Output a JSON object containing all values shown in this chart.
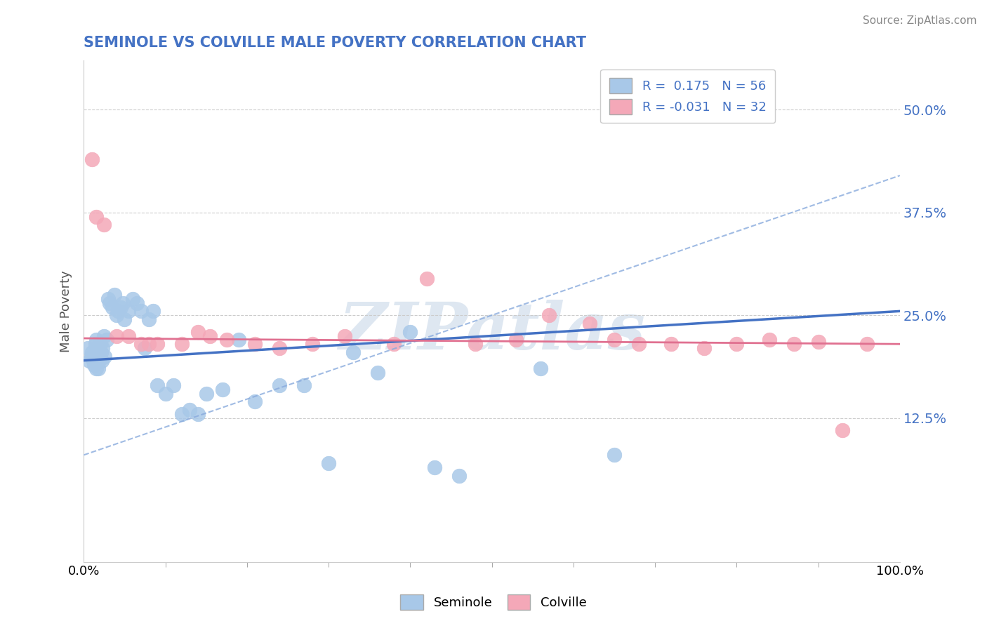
{
  "title": "SEMINOLE VS COLVILLE MALE POVERTY CORRELATION CHART",
  "source": "Source: ZipAtlas.com",
  "ylabel": "Male Poverty",
  "xlim": [
    0.0,
    1.0
  ],
  "ylim": [
    -0.05,
    0.56
  ],
  "xtick_positions": [
    0.0,
    1.0
  ],
  "xtick_labels": [
    "0.0%",
    "100.0%"
  ],
  "ytick_values": [
    0.125,
    0.25,
    0.375,
    0.5
  ],
  "ytick_labels": [
    "12.5%",
    "25.0%",
    "37.5%",
    "50.0%"
  ],
  "seminole_color": "#a8c8e8",
  "colville_color": "#f4a8b8",
  "seminole_line_color": "#4472c4",
  "colville_line_color": "#e07090",
  "dashed_line_color": "#88aadd",
  "legend_R1": "R =  0.175   N = 56",
  "legend_R2": "R = -0.031   N = 32",
  "watermark_text": "ZIPatlas",
  "watermark_color": "#c8d8e8",
  "background_color": "#ffffff",
  "grid_color": "#cccccc",
  "title_color": "#4472c4",
  "right_tick_color": "#4472c4",
  "source_color": "#888888",
  "ylabel_color": "#555555",
  "seminole_x": [
    0.005,
    0.007,
    0.009,
    0.01,
    0.012,
    0.013,
    0.014,
    0.015,
    0.015,
    0.016,
    0.017,
    0.018,
    0.019,
    0.02,
    0.021,
    0.022,
    0.023,
    0.025,
    0.026,
    0.028,
    0.03,
    0.032,
    0.035,
    0.038,
    0.04,
    0.042,
    0.045,
    0.048,
    0.05,
    0.055,
    0.06,
    0.065,
    0.07,
    0.075,
    0.08,
    0.085,
    0.09,
    0.1,
    0.11,
    0.12,
    0.13,
    0.14,
    0.15,
    0.17,
    0.19,
    0.21,
    0.24,
    0.27,
    0.3,
    0.33,
    0.36,
    0.4,
    0.43,
    0.46,
    0.56,
    0.65
  ],
  "seminole_y": [
    0.21,
    0.195,
    0.2,
    0.205,
    0.195,
    0.19,
    0.215,
    0.185,
    0.22,
    0.2,
    0.21,
    0.185,
    0.195,
    0.215,
    0.205,
    0.195,
    0.21,
    0.225,
    0.2,
    0.22,
    0.27,
    0.265,
    0.26,
    0.275,
    0.25,
    0.255,
    0.26,
    0.265,
    0.245,
    0.255,
    0.27,
    0.265,
    0.255,
    0.21,
    0.245,
    0.255,
    0.165,
    0.155,
    0.165,
    0.13,
    0.135,
    0.13,
    0.155,
    0.16,
    0.22,
    0.145,
    0.165,
    0.165,
    0.07,
    0.205,
    0.18,
    0.23,
    0.065,
    0.055,
    0.185,
    0.08
  ],
  "colville_x": [
    0.01,
    0.015,
    0.025,
    0.04,
    0.055,
    0.07,
    0.08,
    0.09,
    0.12,
    0.14,
    0.155,
    0.175,
    0.21,
    0.24,
    0.28,
    0.32,
    0.38,
    0.42,
    0.48,
    0.53,
    0.57,
    0.62,
    0.65,
    0.68,
    0.72,
    0.76,
    0.8,
    0.84,
    0.87,
    0.9,
    0.93,
    0.96
  ],
  "colville_y": [
    0.44,
    0.37,
    0.36,
    0.225,
    0.225,
    0.215,
    0.215,
    0.215,
    0.215,
    0.23,
    0.225,
    0.22,
    0.215,
    0.21,
    0.215,
    0.225,
    0.215,
    0.295,
    0.215,
    0.22,
    0.25,
    0.24,
    0.22,
    0.215,
    0.215,
    0.21,
    0.215,
    0.22,
    0.215,
    0.218,
    0.11,
    0.215
  ],
  "seminole_line_x": [
    0.0,
    1.0
  ],
  "seminole_line_y": [
    0.195,
    0.255
  ],
  "colville_line_x": [
    0.0,
    1.0
  ],
  "colville_line_y": [
    0.222,
    0.215
  ],
  "dashed_line_x": [
    0.0,
    1.0
  ],
  "dashed_line_y": [
    0.08,
    0.42
  ]
}
